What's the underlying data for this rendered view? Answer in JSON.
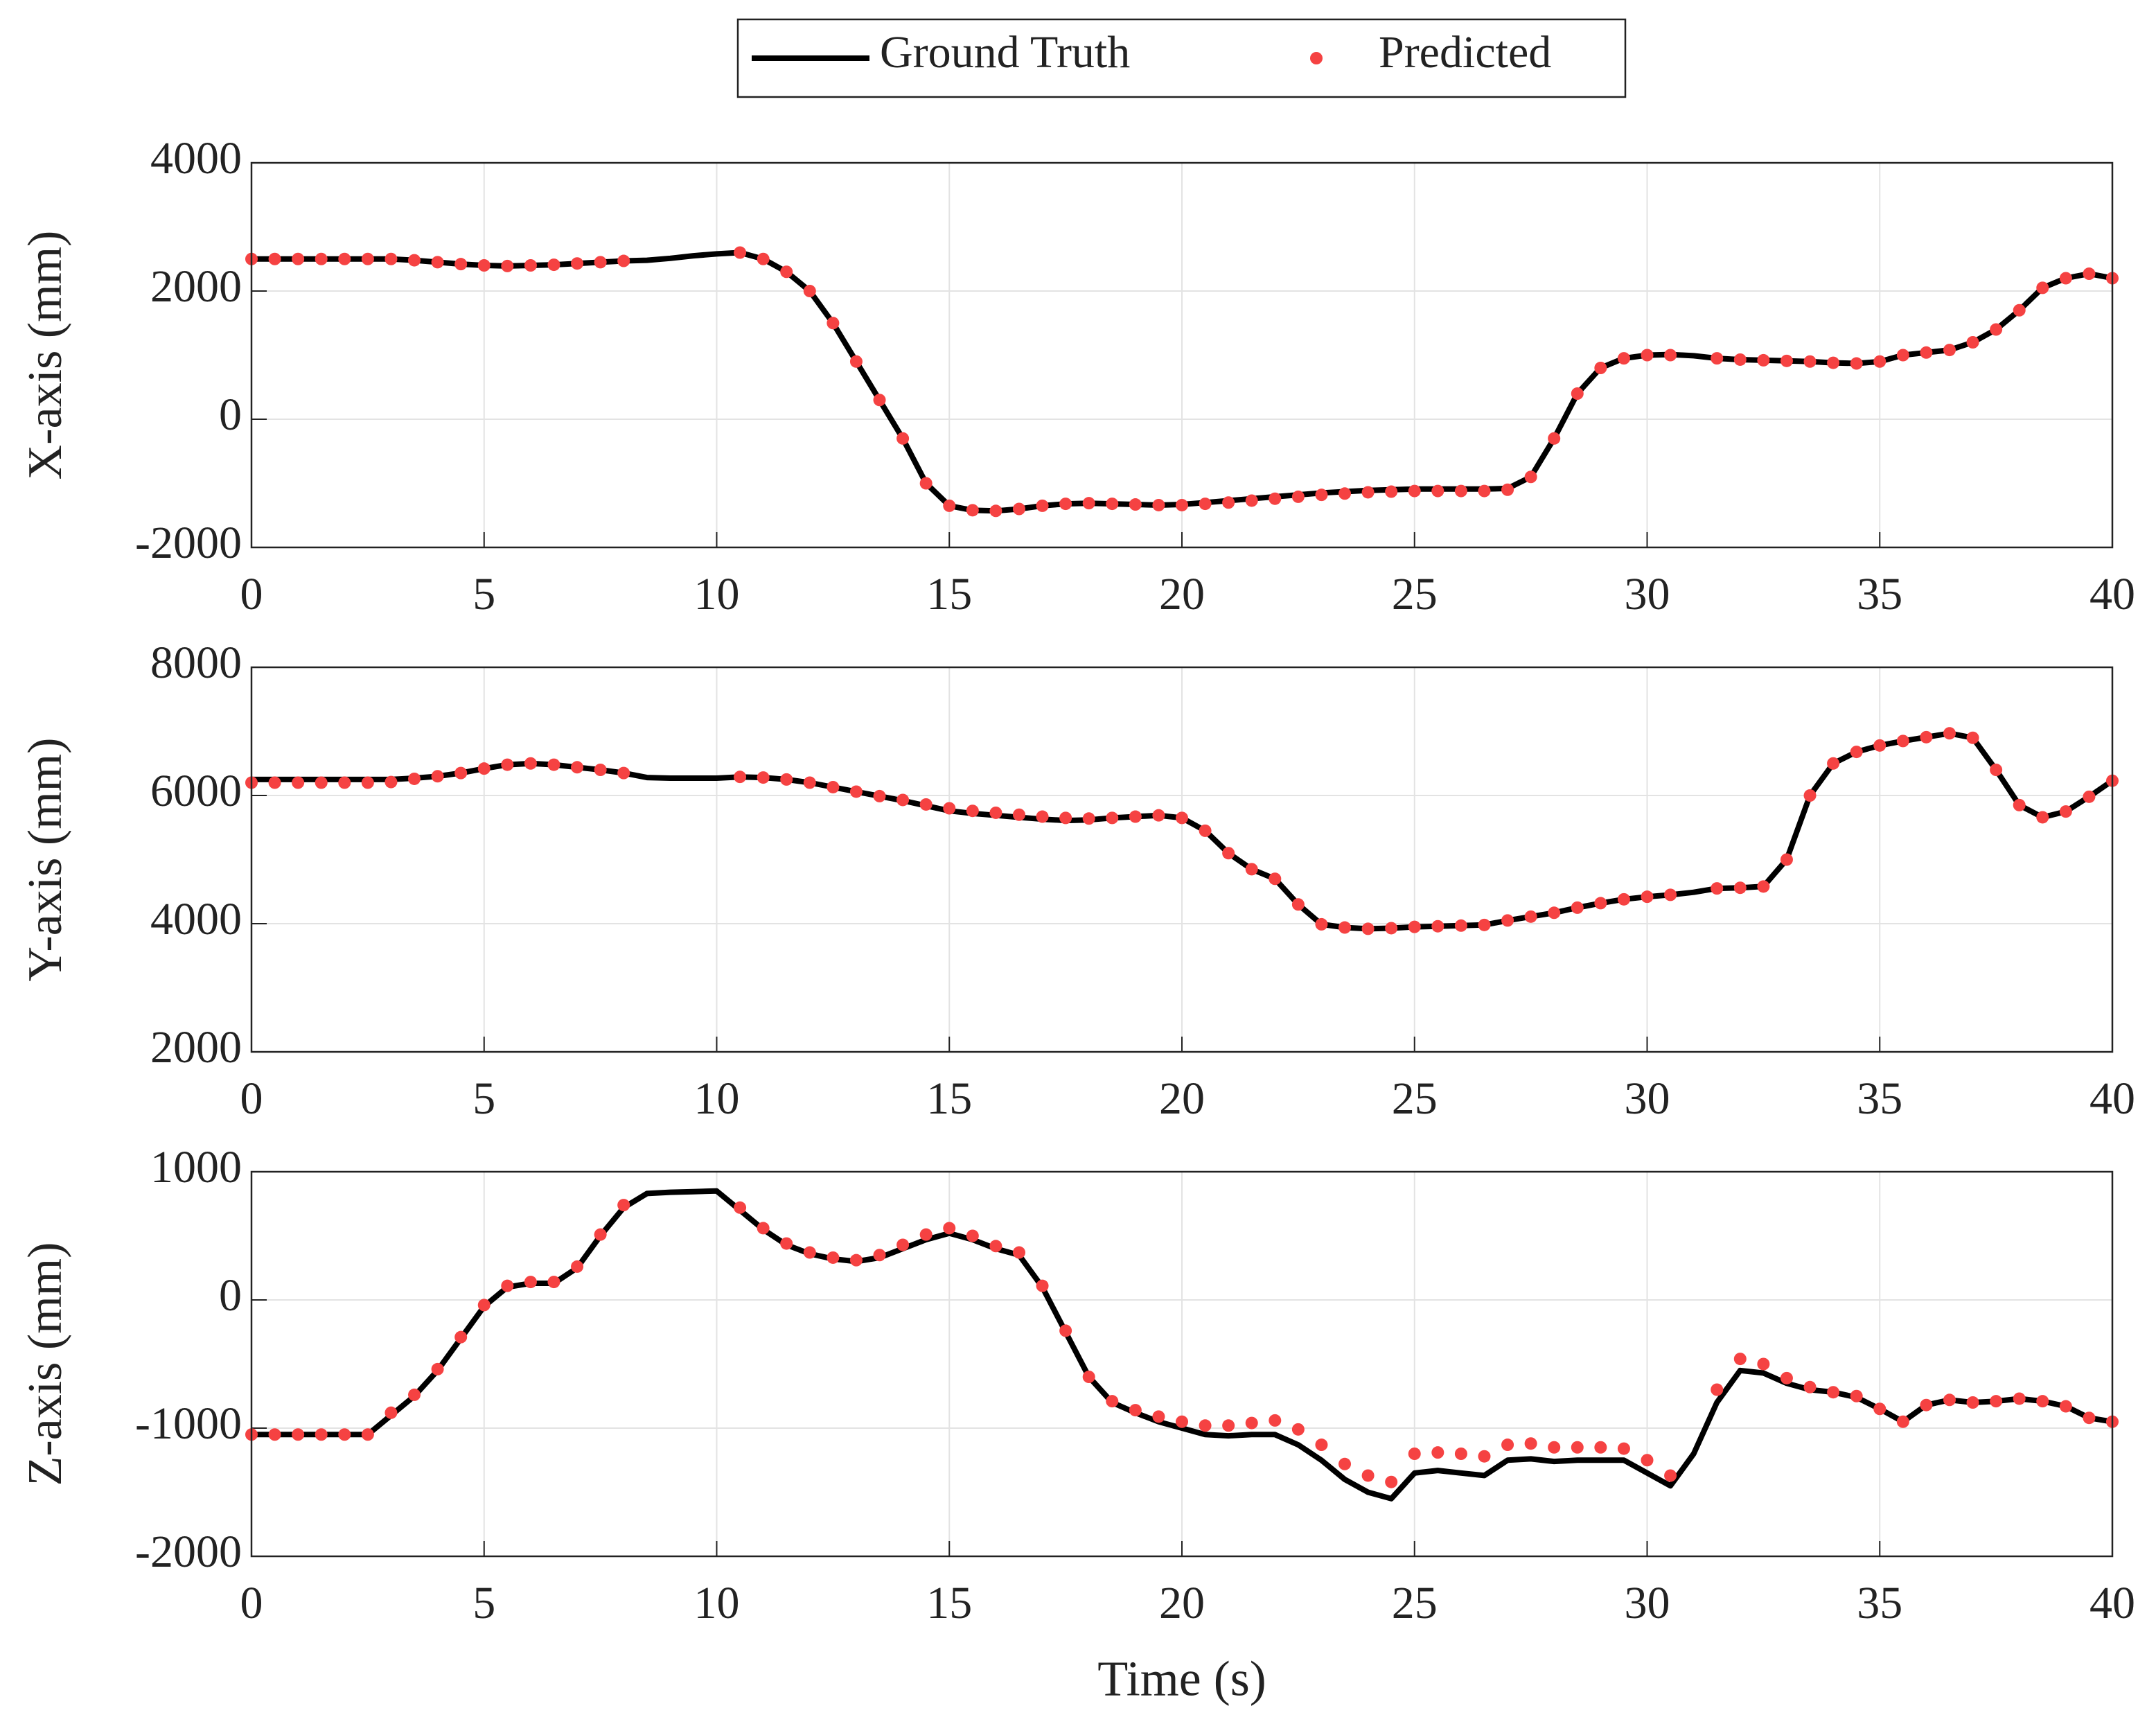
{
  "chart_data": [
    {
      "type": "line",
      "ylabel": "X-axis (mm)",
      "legend": "top",
      "x": [
        0,
        0.5,
        1,
        1.5,
        2,
        2.5,
        3,
        3.5,
        4,
        4.5,
        5,
        5.5,
        6,
        6.5,
        7,
        7.5,
        8,
        8.5,
        9,
        9.5,
        10,
        10.5,
        11,
        11.5,
        12,
        12.5,
        13,
        13.5,
        14,
        14.5,
        15,
        15.5,
        16,
        16.5,
        17,
        17.5,
        18,
        18.5,
        19,
        19.5,
        20,
        20.5,
        21,
        21.5,
        22,
        22.5,
        23,
        23.5,
        24,
        24.5,
        25,
        25.5,
        26,
        26.5,
        27,
        27.5,
        28,
        28.5,
        29,
        29.5,
        30,
        30.5,
        31,
        31.5,
        32,
        32.5,
        33,
        33.5,
        34,
        34.5,
        35,
        35.5,
        36,
        36.5,
        37,
        37.5,
        38,
        38.5,
        39,
        39.5,
        40
      ],
      "series": [
        {
          "name": "Ground Truth",
          "type": "line",
          "color": "#000000",
          "values": [
            2500,
            2500,
            2500,
            2500,
            2500,
            2500,
            2500,
            2480,
            2450,
            2420,
            2400,
            2390,
            2400,
            2410,
            2430,
            2450,
            2470,
            2480,
            2510,
            2550,
            2580,
            2600,
            2500,
            2300,
            2000,
            1500,
            900,
            300,
            -300,
            -1000,
            -1350,
            -1420,
            -1430,
            -1400,
            -1350,
            -1320,
            -1310,
            -1320,
            -1330,
            -1340,
            -1330,
            -1300,
            -1270,
            -1240,
            -1210,
            -1180,
            -1150,
            -1130,
            -1110,
            -1100,
            -1090,
            -1090,
            -1090,
            -1090,
            -1080,
            -900,
            -300,
            400,
            800,
            950,
            1000,
            1010,
            990,
            950,
            930,
            920,
            910,
            900,
            880,
            870,
            900,
            1000,
            1040,
            1080,
            1200,
            1400,
            1700,
            2050,
            2200,
            2270,
            2200
          ]
        },
        {
          "name": "Predicted",
          "type": "scatter",
          "color": "#f54242",
          "values": [
            2500,
            2500,
            2500,
            2500,
            2500,
            2500,
            2500,
            2480,
            2450,
            2420,
            2400,
            2390,
            2400,
            2410,
            2430,
            2450,
            2470,
            null,
            null,
            null,
            null,
            2600,
            2500,
            2300,
            2000,
            1500,
            900,
            300,
            -300,
            -1000,
            -1350,
            -1420,
            -1430,
            -1400,
            -1350,
            -1320,
            -1310,
            -1320,
            -1330,
            -1340,
            -1340,
            -1320,
            -1300,
            -1270,
            -1240,
            -1210,
            -1180,
            -1160,
            -1140,
            -1130,
            -1120,
            -1120,
            -1120,
            -1120,
            -1100,
            -900,
            -300,
            400,
            800,
            950,
            1000,
            1000,
            null,
            950,
            930,
            920,
            910,
            900,
            880,
            870,
            900,
            1000,
            1040,
            1080,
            1200,
            1400,
            1700,
            2050,
            2200,
            2270,
            2200
          ]
        }
      ],
      "xlim": [
        0,
        40
      ],
      "xticks": [
        0,
        5,
        10,
        15,
        20,
        25,
        30,
        35,
        40
      ],
      "ylim": [
        -2000,
        4000
      ],
      "yticks": [
        -2000,
        0,
        2000,
        4000
      ],
      "grid": true
    },
    {
      "type": "line",
      "ylabel": "Y-axis (mm)",
      "x": [
        0,
        0.5,
        1,
        1.5,
        2,
        2.5,
        3,
        3.5,
        4,
        4.5,
        5,
        5.5,
        6,
        6.5,
        7,
        7.5,
        8,
        8.5,
        9,
        9.5,
        10,
        10.5,
        11,
        11.5,
        12,
        12.5,
        13,
        13.5,
        14,
        14.5,
        15,
        15.5,
        16,
        16.5,
        17,
        17.5,
        18,
        18.5,
        19,
        19.5,
        20,
        20.5,
        21,
        21.5,
        22,
        22.5,
        23,
        23.5,
        24,
        24.5,
        25,
        25.5,
        26,
        26.5,
        27,
        27.5,
        28,
        28.5,
        29,
        29.5,
        30,
        30.5,
        31,
        31.5,
        32,
        32.5,
        33,
        33.5,
        34,
        34.5,
        35,
        35.5,
        36,
        36.5,
        37,
        37.5,
        38,
        38.5,
        39,
        39.5,
        40
      ],
      "series": [
        {
          "type": "line",
          "color": "#000000",
          "values": [
            6250,
            6250,
            6250,
            6250,
            6250,
            6250,
            6250,
            6270,
            6300,
            6350,
            6420,
            6480,
            6500,
            6480,
            6440,
            6400,
            6350,
            6280,
            6270,
            6270,
            6270,
            6290,
            6280,
            6250,
            6200,
            6130,
            6060,
            5990,
            5920,
            5840,
            5760,
            5720,
            5690,
            5660,
            5630,
            5610,
            5620,
            5650,
            5670,
            5690,
            5650,
            5450,
            5100,
            4850,
            4700,
            4300,
            3990,
            3940,
            3920,
            3930,
            3950,
            3960,
            3970,
            3980,
            4050,
            4110,
            4170,
            4250,
            4320,
            4380,
            4420,
            4450,
            4490,
            4550,
            4560,
            4580,
            5000,
            6000,
            6500,
            6680,
            6780,
            6850,
            6910,
            6970,
            6900,
            6400,
            5850,
            5660,
            5750,
            5980,
            6230
          ]
        },
        {
          "type": "scatter",
          "color": "#f54242",
          "values": [
            6200,
            6200,
            6200,
            6200,
            6200,
            6200,
            6210,
            6260,
            6300,
            6350,
            6420,
            6480,
            6500,
            6480,
            6440,
            6400,
            6350,
            null,
            null,
            null,
            null,
            6290,
            6280,
            6250,
            6200,
            6130,
            6060,
            5990,
            5930,
            5860,
            5800,
            5760,
            5730,
            5700,
            5670,
            5650,
            5640,
            5650,
            5670,
            5690,
            5650,
            5450,
            5100,
            4850,
            4700,
            4300,
            3990,
            3940,
            3920,
            3930,
            3950,
            3960,
            3970,
            3980,
            4050,
            4110,
            4170,
            4250,
            4320,
            4380,
            4420,
            4450,
            null,
            4550,
            4560,
            4580,
            5000,
            6000,
            6500,
            6680,
            6780,
            6850,
            6910,
            6970,
            6900,
            6400,
            5850,
            5660,
            5750,
            5980,
            6230
          ]
        }
      ],
      "xlim": [
        0,
        40
      ],
      "xticks": [
        0,
        5,
        10,
        15,
        20,
        25,
        30,
        35,
        40
      ],
      "ylim": [
        2000,
        8000
      ],
      "yticks": [
        2000,
        4000,
        6000,
        8000
      ],
      "grid": true
    },
    {
      "type": "line",
      "ylabel": "Z-axis (mm)",
      "xlabel": "Time (s)",
      "x": [
        0,
        0.5,
        1,
        1.5,
        2,
        2.5,
        3,
        3.5,
        4,
        4.5,
        5,
        5.5,
        6,
        6.5,
        7,
        7.5,
        8,
        8.5,
        9,
        9.5,
        10,
        10.5,
        11,
        11.5,
        12,
        12.5,
        13,
        13.5,
        14,
        14.5,
        15,
        15.5,
        16,
        16.5,
        17,
        17.5,
        18,
        18.5,
        19,
        19.5,
        20,
        20.5,
        21,
        21.5,
        22,
        22.5,
        23,
        23.5,
        24,
        24.5,
        25,
        25.5,
        26,
        26.5,
        27,
        27.5,
        28,
        28.5,
        29,
        29.5,
        30,
        30.5,
        31,
        31.5,
        32,
        32.5,
        33,
        33.5,
        34,
        34.5,
        35,
        35.5,
        36,
        36.5,
        37,
        37.5,
        38,
        38.5,
        39,
        39.5,
        40
      ],
      "series": [
        {
          "type": "line",
          "color": "#000000",
          "values": [
            -1050,
            -1050,
            -1050,
            -1050,
            -1050,
            -1050,
            -900,
            -750,
            -550,
            -300,
            -50,
            100,
            130,
            130,
            250,
            500,
            720,
            830,
            840,
            845,
            850,
            700,
            550,
            430,
            360,
            320,
            300,
            330,
            400,
            470,
            520,
            470,
            400,
            350,
            100,
            -250,
            -600,
            -800,
            -880,
            -950,
            -1000,
            -1050,
            -1060,
            -1050,
            -1050,
            -1130,
            -1250,
            -1400,
            -1500,
            -1550,
            -1350,
            -1330,
            -1350,
            -1370,
            -1250,
            -1240,
            -1260,
            -1250,
            -1250,
            -1250,
            -1350,
            -1450,
            -1200,
            -800,
            -550,
            -570,
            -650,
            -700,
            -720,
            -760,
            -850,
            -950,
            -820,
            -780,
            -800,
            -790,
            -770,
            -790,
            -830,
            -920,
            -950
          ]
        },
        {
          "type": "scatter",
          "color": "#f54242",
          "values": [
            -1050,
            -1050,
            -1050,
            -1050,
            -1050,
            -1050,
            -880,
            -740,
            -540,
            -290,
            -40,
            110,
            140,
            140,
            260,
            510,
            740,
            null,
            null,
            null,
            null,
            720,
            560,
            440,
            370,
            330,
            310,
            350,
            430,
            510,
            560,
            500,
            420,
            370,
            110,
            -240,
            -600,
            -790,
            -860,
            -910,
            -950,
            -980,
            -980,
            -960,
            -940,
            -1010,
            -1130,
            -1280,
            -1370,
            -1420,
            -1200,
            -1190,
            -1200,
            -1220,
            -1130,
            -1120,
            -1150,
            -1150,
            -1150,
            -1160,
            -1250,
            -1370,
            null,
            -700,
            -460,
            -500,
            -610,
            -680,
            -720,
            -750,
            -850,
            -950,
            -820,
            -780,
            -800,
            -790,
            -770,
            -790,
            -830,
            -920,
            -950
          ]
        }
      ],
      "xlim": [
        0,
        40
      ],
      "xticks": [
        0,
        5,
        10,
        15,
        20,
        25,
        30,
        35,
        40
      ],
      "ylim": [
        -2000,
        1000
      ],
      "yticks": [
        -2000,
        -1000,
        0,
        1000
      ],
      "grid": true
    }
  ]
}
